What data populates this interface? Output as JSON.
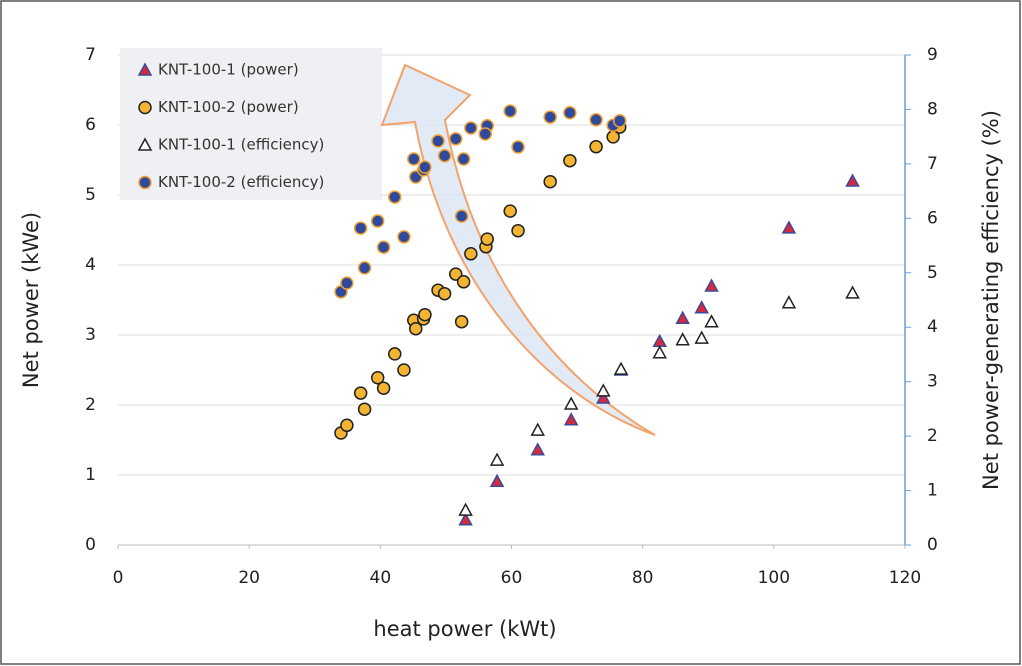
{
  "chart_data": {
    "type": "scatter",
    "x_label": "heat power  (kWt)",
    "y_label": "Net power (kWe)",
    "y2_label": "Net power-generating efficiency (%)",
    "xlim": [
      0,
      120
    ],
    "xticks": [
      0,
      20,
      40,
      60,
      80,
      100,
      120
    ],
    "ylim": [
      0,
      7
    ],
    "yticks": [
      0,
      1,
      2,
      3,
      4,
      5,
      6,
      7
    ],
    "y2lim": [
      0,
      9
    ],
    "y2ticks": [
      0,
      1,
      2,
      3,
      4,
      5,
      6,
      7,
      8,
      9
    ],
    "grid": true,
    "legend": "upper left",
    "series": [
      {
        "name": "KNT-100-1 (power)",
        "marker": "triangle",
        "color": "#d42a3c",
        "edgecolor": "#3b4a9a",
        "x": [
          53.0,
          57.8,
          64.0,
          69.1,
          74.0,
          76.7,
          82.6,
          86.1,
          89.0,
          90.5,
          102.3,
          112.0
        ],
        "values": [
          0.36,
          0.91,
          1.36,
          1.79,
          2.1,
          2.5,
          2.91,
          3.24,
          3.39,
          3.7,
          4.53,
          5.2
        ]
      },
      {
        "name": "KNT-100-2 (power)",
        "marker": "circle",
        "color": "#f3b531",
        "edgecolor": "#222222",
        "x": [
          34.0,
          34.9,
          37.0,
          37.6,
          39.6,
          40.5,
          42.2,
          43.6,
          45.1,
          45.4,
          46.6,
          46.8,
          48.8,
          49.8,
          51.5,
          52.7,
          52.4,
          53.8,
          56.1,
          56.3,
          59.8,
          61.0,
          65.9,
          68.9,
          72.9,
          75.5,
          76.5
        ],
        "values": [
          1.6,
          1.71,
          2.17,
          1.94,
          2.39,
          2.24,
          2.73,
          2.5,
          3.21,
          3.09,
          3.23,
          3.29,
          3.64,
          3.59,
          3.87,
          3.76,
          3.19,
          4.16,
          4.26,
          4.37,
          4.77,
          4.49,
          5.19,
          5.49,
          5.69,
          5.83,
          5.97
        ]
      },
      {
        "name": "KNT-100-1 (efficiency)",
        "marker": "triangle",
        "color": "#ffffff",
        "edgecolor": "#222222",
        "axis": "y2",
        "x": [
          53.0,
          57.8,
          64.0,
          69.1,
          74.0,
          76.7,
          82.6,
          86.1,
          89.0,
          90.5,
          102.3,
          112.0
        ],
        "values": [
          0.64,
          1.56,
          2.11,
          2.59,
          2.83,
          3.23,
          3.53,
          3.77,
          3.8,
          4.1,
          4.45,
          4.63
        ]
      },
      {
        "name": "KNT-100-2 (efficiency)",
        "marker": "circle",
        "color": "#2f4a9c",
        "edgecolor": "#f0a030",
        "axis": "y2",
        "x": [
          34.0,
          34.9,
          37.0,
          37.6,
          39.6,
          40.5,
          42.2,
          43.6,
          45.1,
          45.4,
          46.6,
          46.8,
          48.8,
          49.8,
          51.5,
          52.7,
          52.4,
          53.8,
          56.3,
          56.0,
          59.8,
          61.0,
          65.9,
          68.9,
          72.9,
          75.5,
          76.5
        ],
        "values": [
          4.65,
          4.81,
          5.82,
          5.09,
          5.95,
          5.47,
          6.39,
          5.66,
          7.09,
          6.76,
          6.89,
          6.94,
          7.42,
          7.15,
          7.46,
          7.09,
          6.04,
          7.66,
          7.7,
          7.55,
          7.97,
          7.31,
          7.86,
          7.94,
          7.81,
          7.71,
          7.79
        ]
      }
    ]
  }
}
